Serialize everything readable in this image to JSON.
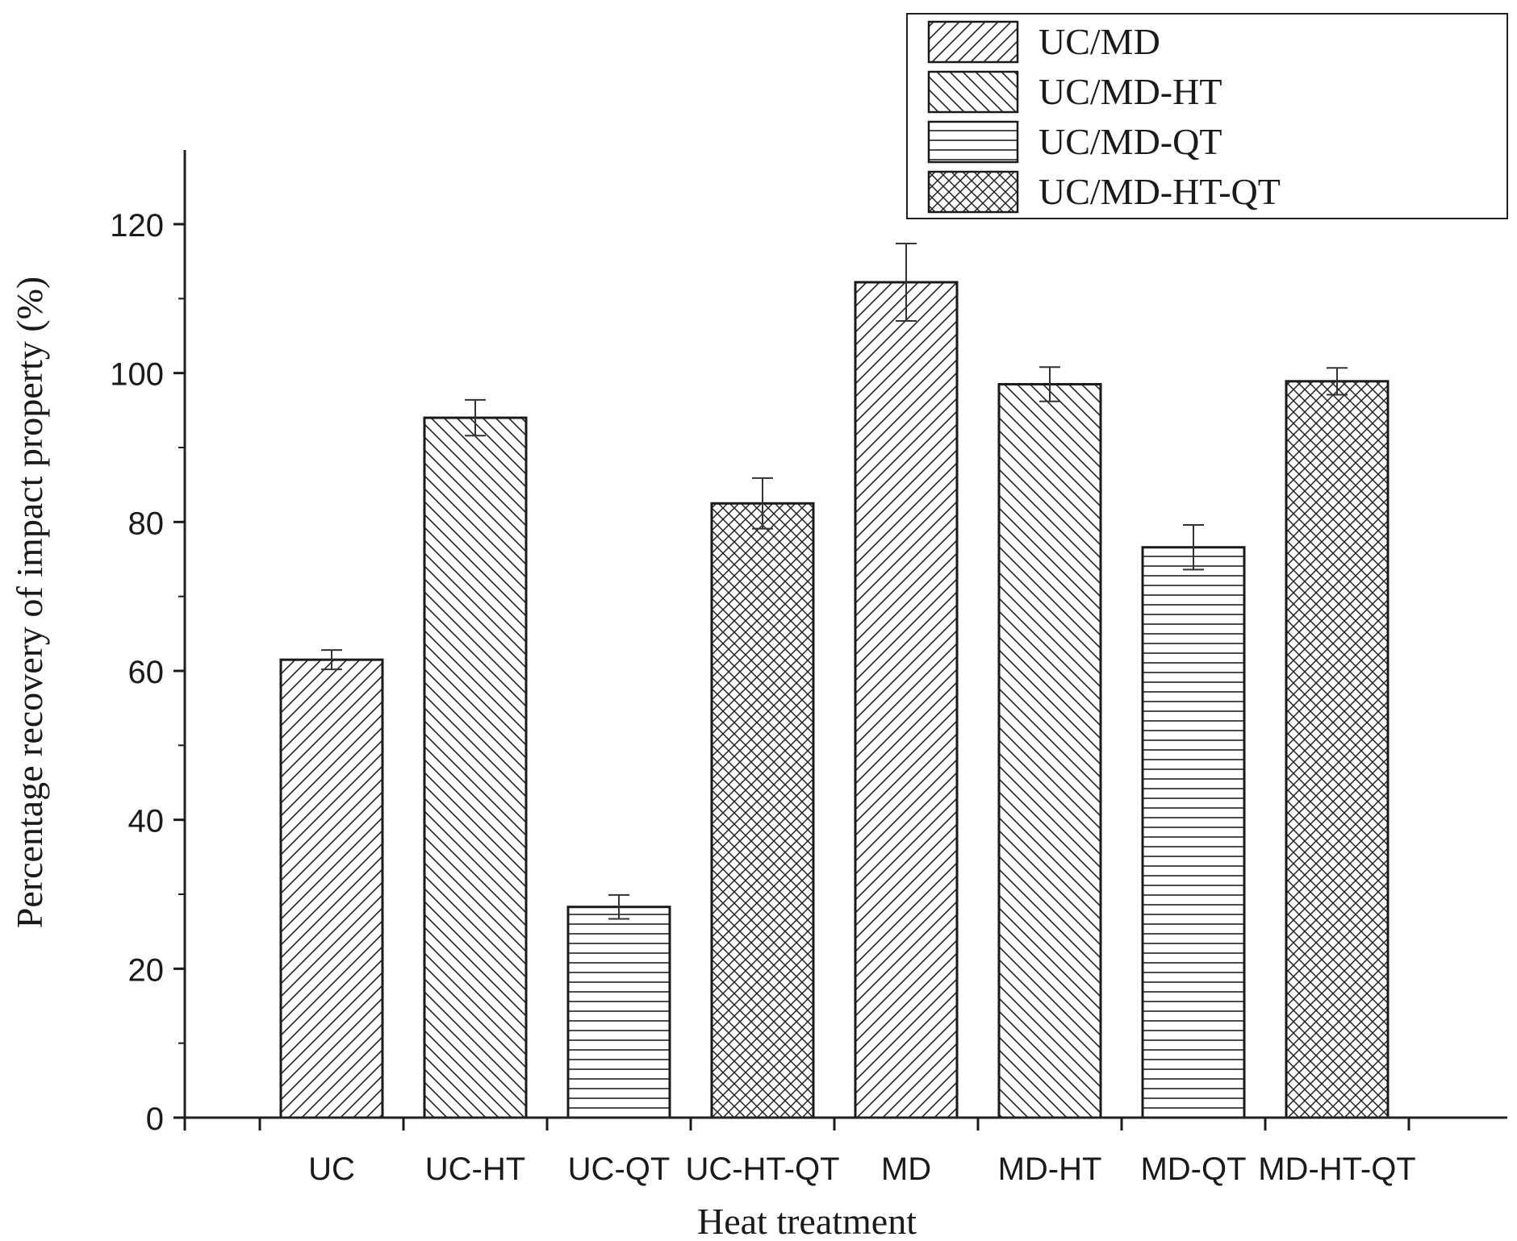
{
  "chart_data": {
    "type": "bar",
    "xlabel": "Heat treatment",
    "ylabel": "Percentage recovery of impact property (%)",
    "ylim": [
      0,
      130
    ],
    "yticks": [
      0,
      20,
      40,
      60,
      80,
      100,
      120
    ],
    "grid": false,
    "legend_position": "top-right",
    "categories": [
      "UC",
      "UC-HT",
      "UC-QT",
      "UC-HT-QT",
      "MD",
      "MD-HT",
      "MD-QT",
      "MD-HT-QT"
    ],
    "values": [
      61.5,
      94.0,
      28.3,
      82.5,
      112.2,
      98.5,
      76.6,
      98.9
    ],
    "errors": [
      1.3,
      2.4,
      1.6,
      3.4,
      5.2,
      2.3,
      3.0,
      1.8
    ],
    "patterns": [
      "diag-up",
      "diag-down",
      "horizontal",
      "crosshatch",
      "diag-up",
      "diag-down",
      "horizontal",
      "crosshatch"
    ],
    "legend": [
      {
        "label": "UC/MD",
        "pattern": "diag-up"
      },
      {
        "label": "UC/MD-HT",
        "pattern": "diag-down"
      },
      {
        "label": "UC/MD-QT",
        "pattern": "horizontal"
      },
      {
        "label": "UC/MD-HT-QT",
        "pattern": "crosshatch"
      }
    ],
    "colors": {
      "ink": "#1a1a1a",
      "background": "#ffffff"
    }
  }
}
